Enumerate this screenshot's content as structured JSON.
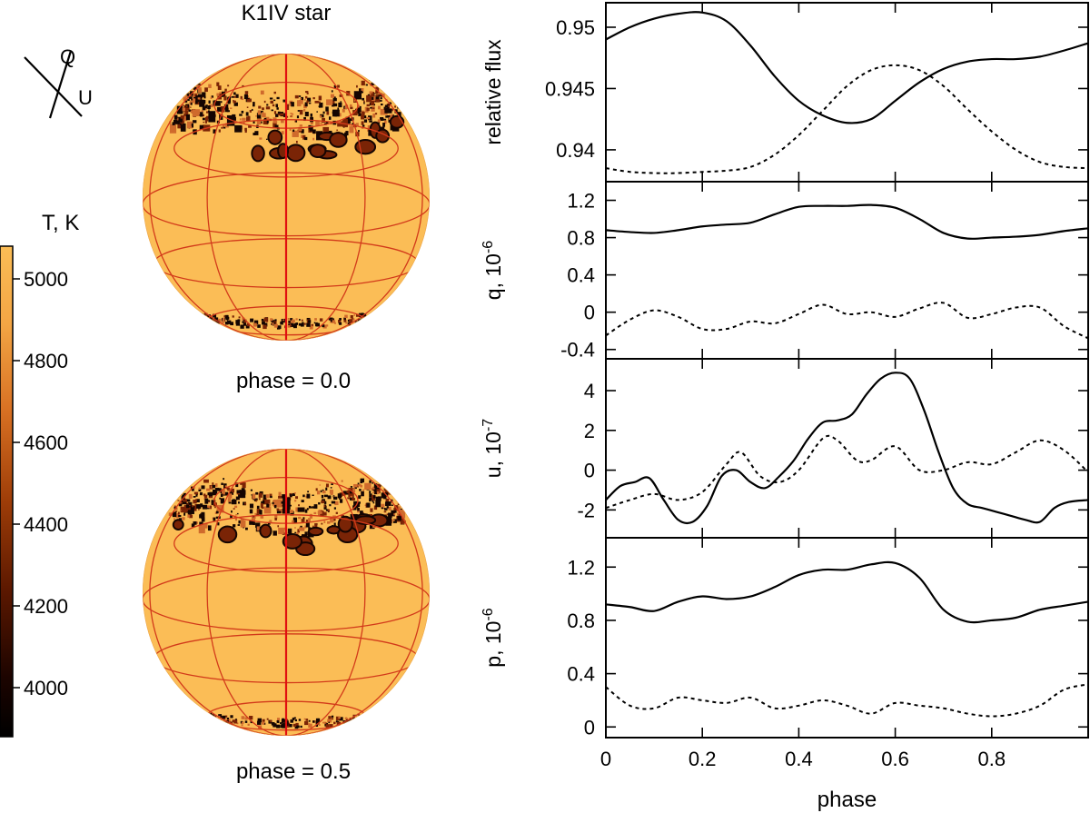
{
  "title": "K1IV star",
  "legend": {
    "q_label": "Q",
    "u_label": "U"
  },
  "colorbar": {
    "title": "T, K",
    "ticks": [
      5000,
      4800,
      4600,
      4400,
      4200,
      4000
    ],
    "range": [
      3880,
      5080
    ],
    "colors": [
      "#000000",
      "#3a0a00",
      "#8a2a00",
      "#c85a1a",
      "#f0a040",
      "#fbbd56"
    ]
  },
  "phase_labels": [
    "phase = 0.0",
    "phase = 0.5"
  ],
  "colors": {
    "surface": "#fbbd56",
    "grid": "#d23a1a",
    "axis": "#e01010",
    "spot_dark": "#150502",
    "spot_mid": "#7a2406",
    "spot_light": "#cf6a2c"
  },
  "chart_data": [
    {
      "type": "line",
      "ylabel": "relative flux",
      "xlim": [
        0,
        1
      ],
      "ylim": [
        0.9374,
        0.952
      ],
      "yticks": [
        0.95,
        0.945,
        0.94
      ],
      "ytick_labels": [
        "0.95",
        "0.945",
        "0.94"
      ],
      "series": [
        {
          "name": "solid",
          "style": "solid",
          "x": [
            0,
            0.05,
            0.1,
            0.15,
            0.2,
            0.25,
            0.3,
            0.35,
            0.4,
            0.45,
            0.5,
            0.55,
            0.6,
            0.65,
            0.7,
            0.75,
            0.8,
            0.85,
            0.9,
            0.95,
            1.0
          ],
          "y": [
            0.949,
            0.95,
            0.9507,
            0.9511,
            0.9512,
            0.9505,
            0.9485,
            0.946,
            0.944,
            0.9428,
            0.9422,
            0.9425,
            0.944,
            0.9455,
            0.9466,
            0.9472,
            0.9474,
            0.9474,
            0.9476,
            0.9481,
            0.9487
          ]
        },
        {
          "name": "dotted",
          "style": "dotted",
          "x": [
            0,
            0.05,
            0.1,
            0.15,
            0.2,
            0.25,
            0.3,
            0.35,
            0.4,
            0.45,
            0.5,
            0.55,
            0.6,
            0.65,
            0.7,
            0.75,
            0.8,
            0.85,
            0.9,
            0.95,
            1.0
          ],
          "y": [
            0.9385,
            0.9382,
            0.9381,
            0.9381,
            0.9382,
            0.9383,
            0.9386,
            0.9396,
            0.9412,
            0.9432,
            0.9452,
            0.9465,
            0.9469,
            0.9465,
            0.9452,
            0.9433,
            0.9415,
            0.94,
            0.939,
            0.9386,
            0.9385
          ]
        }
      ]
    },
    {
      "type": "line",
      "ylabel": "q, 10",
      "ylabel_exp": "-6",
      "xlim": [
        0,
        1
      ],
      "ylim": [
        -0.5,
        1.4
      ],
      "yticks": [
        1.2,
        0.8,
        0.4,
        0,
        -0.4
      ],
      "ytick_labels": [
        "1.2",
        "0.8",
        "0.4",
        "0",
        "-0.4"
      ],
      "series": [
        {
          "name": "solid",
          "style": "solid",
          "x": [
            0,
            0.05,
            0.1,
            0.15,
            0.2,
            0.25,
            0.3,
            0.35,
            0.4,
            0.45,
            0.5,
            0.55,
            0.6,
            0.65,
            0.7,
            0.75,
            0.8,
            0.85,
            0.9,
            0.95,
            1.0
          ],
          "y": [
            0.88,
            0.86,
            0.85,
            0.88,
            0.92,
            0.94,
            0.96,
            1.05,
            1.13,
            1.14,
            1.14,
            1.15,
            1.12,
            1.0,
            0.85,
            0.79,
            0.8,
            0.81,
            0.83,
            0.87,
            0.9
          ]
        },
        {
          "name": "dotted",
          "style": "dotted",
          "x": [
            0,
            0.05,
            0.1,
            0.15,
            0.2,
            0.25,
            0.3,
            0.35,
            0.4,
            0.45,
            0.5,
            0.55,
            0.6,
            0.65,
            0.7,
            0.75,
            0.8,
            0.85,
            0.9,
            0.95,
            1.0
          ],
          "y": [
            -0.25,
            -0.08,
            0.02,
            -0.05,
            -0.18,
            -0.18,
            -0.1,
            -0.12,
            -0.02,
            0.08,
            -0.02,
            0.0,
            -0.05,
            0.04,
            0.1,
            -0.06,
            -0.02,
            0.05,
            0.05,
            -0.15,
            -0.28
          ]
        }
      ]
    },
    {
      "type": "line",
      "ylabel": "u, 10",
      "ylabel_exp": "-7",
      "xlim": [
        0,
        1
      ],
      "ylim": [
        -3.4,
        5.6
      ],
      "yticks": [
        4,
        2,
        0,
        -2
      ],
      "ytick_labels": [
        "4",
        "2",
        "0",
        "-2"
      ],
      "series": [
        {
          "name": "solid",
          "style": "solid",
          "x": [
            0,
            0.03,
            0.06,
            0.09,
            0.12,
            0.15,
            0.18,
            0.21,
            0.24,
            0.27,
            0.3,
            0.33,
            0.36,
            0.39,
            0.42,
            0.45,
            0.48,
            0.51,
            0.54,
            0.57,
            0.6,
            0.63,
            0.66,
            0.69,
            0.72,
            0.75,
            0.78,
            0.81,
            0.84,
            0.87,
            0.9,
            0.93,
            0.96,
            1.0
          ],
          "y": [
            -1.5,
            -0.8,
            -0.6,
            -0.4,
            -1.5,
            -2.5,
            -2.6,
            -1.8,
            -0.3,
            0.0,
            -0.6,
            -0.9,
            -0.3,
            0.5,
            1.6,
            2.4,
            2.5,
            2.8,
            3.8,
            4.6,
            4.9,
            4.6,
            3.0,
            0.9,
            -0.9,
            -1.7,
            -1.9,
            -2.1,
            -2.3,
            -2.5,
            -2.6,
            -1.9,
            -1.6,
            -1.5
          ]
        },
        {
          "name": "dotted",
          "style": "dotted",
          "x": [
            0,
            0.05,
            0.1,
            0.15,
            0.2,
            0.25,
            0.28,
            0.32,
            0.36,
            0.4,
            0.45,
            0.48,
            0.52,
            0.55,
            0.6,
            0.65,
            0.7,
            0.75,
            0.8,
            0.85,
            0.9,
            0.95,
            1.0
          ],
          "y": [
            -1.9,
            -1.5,
            -1.2,
            -1.5,
            -1.1,
            0.3,
            0.9,
            -0.3,
            -0.6,
            0.0,
            1.6,
            1.5,
            0.5,
            0.5,
            1.2,
            0.0,
            0.0,
            0.4,
            0.3,
            0.9,
            1.5,
            1.0,
            -0.1
          ]
        }
      ]
    },
    {
      "type": "line",
      "ylabel": "p, 10",
      "ylabel_exp": "-6",
      "xlabel": "phase",
      "xlim": [
        0,
        1
      ],
      "ylim": [
        -0.08,
        1.42
      ],
      "yticks": [
        1.2,
        0.8,
        0.4,
        0
      ],
      "ytick_labels": [
        "1.2",
        "0.8",
        "0.4",
        "0"
      ],
      "xticks": [
        0,
        0.2,
        0.4,
        0.6,
        0.8
      ],
      "xtick_labels": [
        "0",
        "0.2",
        "0.4",
        "0.6",
        "0.8"
      ],
      "series": [
        {
          "name": "solid",
          "style": "solid",
          "x": [
            0,
            0.05,
            0.1,
            0.15,
            0.2,
            0.25,
            0.3,
            0.35,
            0.4,
            0.45,
            0.5,
            0.55,
            0.6,
            0.65,
            0.7,
            0.75,
            0.8,
            0.85,
            0.9,
            0.95,
            1.0
          ],
          "y": [
            0.92,
            0.9,
            0.87,
            0.94,
            0.98,
            0.96,
            0.98,
            1.05,
            1.14,
            1.18,
            1.18,
            1.22,
            1.23,
            1.12,
            0.88,
            0.79,
            0.8,
            0.82,
            0.88,
            0.91,
            0.94
          ]
        },
        {
          "name": "dotted",
          "style": "dotted",
          "x": [
            0,
            0.05,
            0.1,
            0.15,
            0.2,
            0.25,
            0.3,
            0.35,
            0.4,
            0.45,
            0.5,
            0.55,
            0.6,
            0.65,
            0.7,
            0.75,
            0.8,
            0.85,
            0.9,
            0.95,
            1.0
          ],
          "y": [
            0.3,
            0.16,
            0.14,
            0.22,
            0.2,
            0.18,
            0.22,
            0.14,
            0.16,
            0.2,
            0.16,
            0.1,
            0.18,
            0.16,
            0.14,
            0.1,
            0.08,
            0.1,
            0.16,
            0.28,
            0.32
          ]
        }
      ]
    }
  ]
}
